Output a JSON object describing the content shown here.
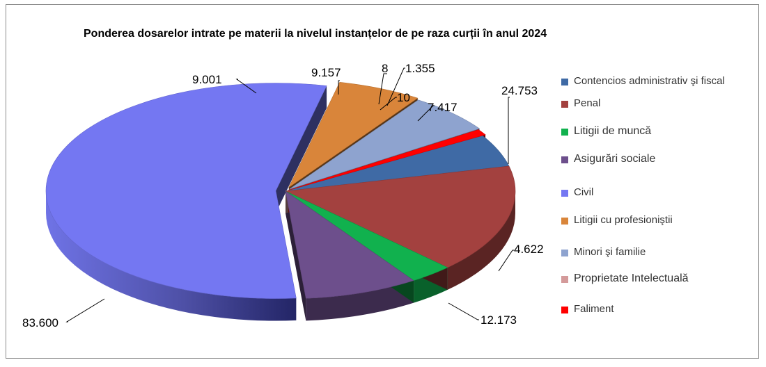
{
  "chart_data": {
    "type": "pie",
    "title": "Ponderea dosarelor intrate pe materii la nivelul instanțelor de pe raza curții în anul 2024",
    "categories": [
      "Contencios administrativ şi fiscal",
      "Penal",
      "Litigii de muncă",
      "Asigurări sociale",
      "Civil",
      "Litigii cu profesioniştii",
      "Minori şi familie",
      "Proprietate Intelectuală",
      "Faliment"
    ],
    "values": [
      7417,
      24753,
      4622,
      12173,
      83600,
      9001,
      9157,
      10,
      1355
    ],
    "value_labels": [
      "7.417",
      "24.753",
      "4.622",
      "12.173",
      "83.600",
      "9.001",
      "9.157",
      "10",
      "1.355"
    ],
    "extra_label": "8",
    "colors": [
      "#3f6aa5",
      "#a3413f",
      "#11b14e",
      "#6d4f8c",
      "#7477f2",
      "#d9853a",
      "#8ea3cf",
      "#d49a9a",
      "#ff0000"
    ],
    "legend_position": "right",
    "exploded": true,
    "style": "3d"
  }
}
